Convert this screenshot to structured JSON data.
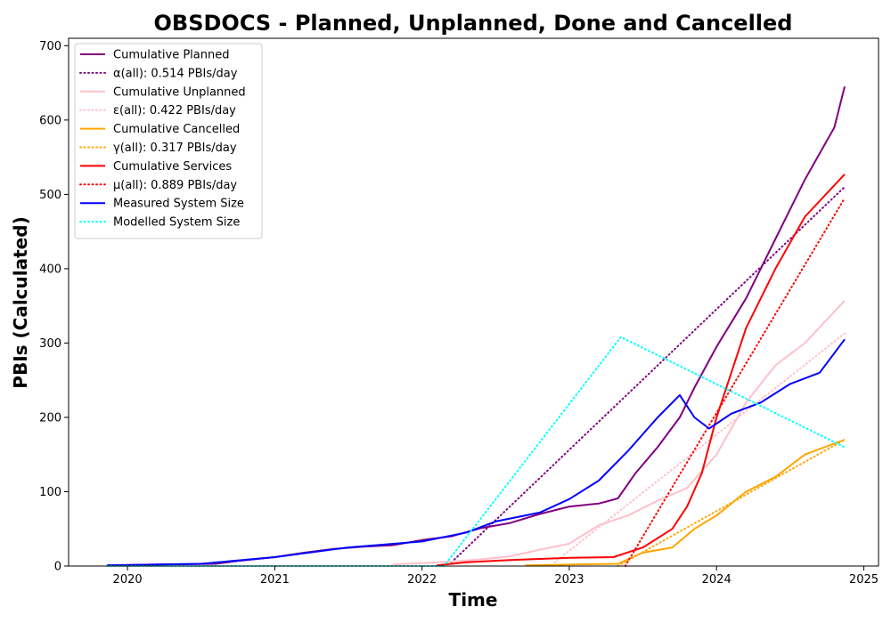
{
  "chart_data": {
    "type": "line",
    "title": "OBSDOCS - Planned, Unplanned, Done  and Cancelled",
    "xlabel": "Time",
    "ylabel": "PBIs (Calculated)",
    "xlim": [
      2019.6,
      2025.1
    ],
    "ylim": [
      0,
      710
    ],
    "x_ticks": [
      2020,
      2021,
      2022,
      2023,
      2024,
      2025
    ],
    "x_tick_labels": [
      "2020",
      "2021",
      "2022",
      "2023",
      "2024",
      "2025"
    ],
    "y_ticks": [
      0,
      100,
      200,
      300,
      400,
      500,
      600,
      700
    ],
    "y_tick_labels": [
      "0",
      "100",
      "200",
      "300",
      "400",
      "500",
      "600",
      "700"
    ],
    "grid": false,
    "legend_position": "top-left",
    "series": [
      {
        "name": "Cumulative Planned",
        "color": "#800080",
        "style": "solid",
        "x": [
          2019.86,
          2020.2,
          2020.6,
          2020.75,
          2021.0,
          2021.2,
          2021.4,
          2021.6,
          2021.8,
          2022.0,
          2022.2,
          2022.4,
          2022.6,
          2022.8,
          2023.0,
          2023.2,
          2023.33,
          2023.45,
          2023.6,
          2023.75,
          2023.85,
          2024.0,
          2024.2,
          2024.4,
          2024.6,
          2024.8,
          2024.87
        ],
        "y": [
          1,
          2,
          3,
          7,
          12,
          18,
          23,
          26,
          28,
          35,
          40,
          51,
          58,
          70,
          80,
          84,
          91,
          125,
          160,
          200,
          240,
          295,
          360,
          440,
          520,
          590,
          645
        ]
      },
      {
        "name": "α(all): 0.514 PBIs/day",
        "color": "#800080",
        "style": "dotted",
        "x": [
          2022.2,
          2024.87
        ],
        "y": [
          5,
          510
        ]
      },
      {
        "name": "Cumulative Unplanned",
        "color": "#ffc0cb",
        "style": "solid",
        "x": [
          2021.8,
          2022.0,
          2022.2,
          2022.4,
          2022.6,
          2022.8,
          2023.0,
          2023.2,
          2023.4,
          2023.6,
          2023.8,
          2024.0,
          2024.2,
          2024.4,
          2024.6,
          2024.87
        ],
        "y": [
          2,
          4,
          6,
          9,
          13,
          22,
          30,
          55,
          68,
          88,
          105,
          150,
          220,
          270,
          300,
          357
        ]
      },
      {
        "name": "ε(all): 0.422 PBIs/day",
        "color": "#ffc0cb",
        "style": "dotted",
        "x": [
          2022.9,
          2024.87
        ],
        "y": [
          5,
          313
        ]
      },
      {
        "name": "Cumulative Cancelled",
        "color": "#ffa500",
        "style": "solid",
        "x": [
          2022.7,
          2023.0,
          2023.33,
          2023.5,
          2023.7,
          2023.85,
          2024.0,
          2024.2,
          2024.4,
          2024.6,
          2024.87
        ],
        "y": [
          1,
          2,
          3,
          18,
          25,
          50,
          68,
          100,
          120,
          150,
          170
        ]
      },
      {
        "name": "γ(all): 0.317 PBIs/day",
        "color": "#ffa500",
        "style": "dotted",
        "x": [
          2023.33,
          2024.87
        ],
        "y": [
          0,
          170
        ]
      },
      {
        "name": "Cumulative Services",
        "color": "#ff0000",
        "style": "solid",
        "x": [
          2022.1,
          2022.3,
          2022.6,
          2023.0,
          2023.3,
          2023.5,
          2023.7,
          2023.8,
          2023.9,
          2024.0,
          2024.2,
          2024.4,
          2024.6,
          2024.87
        ],
        "y": [
          1,
          5,
          8,
          11,
          12,
          25,
          50,
          80,
          125,
          200,
          320,
          400,
          470,
          527
        ]
      },
      {
        "name": "μ(all): 0.889 PBIs/day",
        "color": "#ff0000",
        "style": "dotted",
        "x": [
          2023.38,
          2024.87
        ],
        "y": [
          0,
          495
        ]
      },
      {
        "name": "Measured System Size",
        "color": "#0000ff",
        "style": "solid",
        "x": [
          2019.86,
          2020.5,
          2021.0,
          2021.5,
          2022.0,
          2022.3,
          2022.5,
          2022.8,
          2023.0,
          2023.2,
          2023.4,
          2023.6,
          2023.75,
          2023.85,
          2023.95,
          2024.1,
          2024.3,
          2024.5,
          2024.7,
          2024.87
        ],
        "y": [
          1,
          3,
          12,
          25,
          33,
          45,
          60,
          72,
          90,
          115,
          155,
          200,
          230,
          200,
          185,
          205,
          220,
          245,
          260,
          305
        ]
      },
      {
        "name": "Modelled System Size",
        "color": "#00ffff",
        "style": "dotted",
        "x": [
          2019.86,
          2022.15,
          2023.35,
          2024.87
        ],
        "y": [
          0,
          0,
          308,
          160
        ]
      }
    ]
  }
}
